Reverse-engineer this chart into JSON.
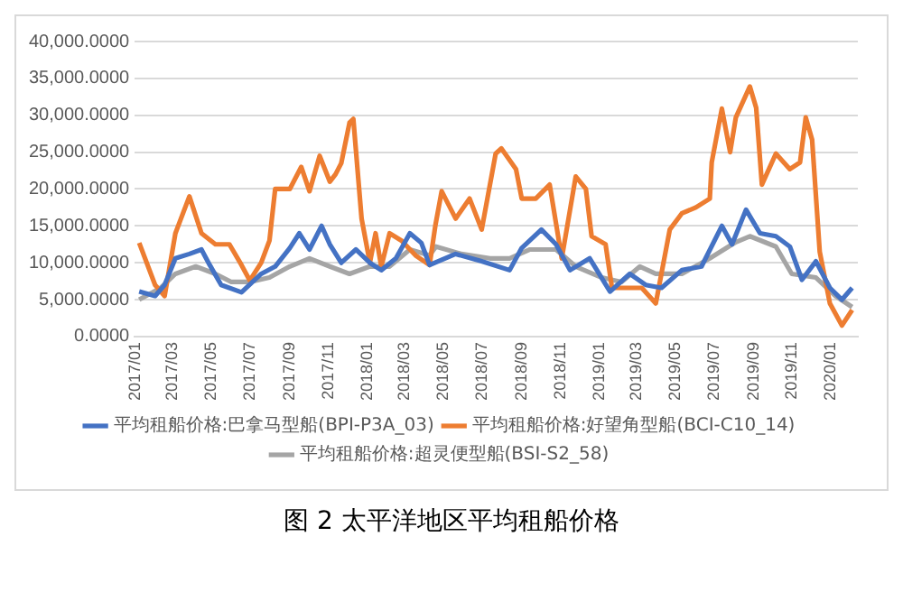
{
  "chart_data": {
    "type": "line",
    "title": "图 2 太平洋地区平均租船价格",
    "xlim": [
      "2016-12-31",
      "2020-02-12"
    ],
    "xticks": [
      {
        "value": "2017-01-01",
        "label": "2017/01"
      },
      {
        "value": "2017-03-01",
        "label": "2017/03"
      },
      {
        "value": "2017-05-01",
        "label": "2017/05"
      },
      {
        "value": "2017-07-01",
        "label": "2017/07"
      },
      {
        "value": "2017-09-01",
        "label": "2017/09"
      },
      {
        "value": "2017-11-01",
        "label": "2017/11"
      },
      {
        "value": "2018-01-01",
        "label": "2018/01"
      },
      {
        "value": "2018-03-01",
        "label": "2018/03"
      },
      {
        "value": "2018-05-01",
        "label": "2018/05"
      },
      {
        "value": "2018-07-01",
        "label": "2018/07"
      },
      {
        "value": "2018-09-01",
        "label": "2018/09"
      },
      {
        "value": "2018-11-01",
        "label": "2018/11"
      },
      {
        "value": "2019-01-01",
        "label": "2019/01"
      },
      {
        "value": "2019-03-01",
        "label": "2019/03"
      },
      {
        "value": "2019-05-01",
        "label": "2019/05"
      },
      {
        "value": "2019-07-01",
        "label": "2019/07"
      },
      {
        "value": "2019-09-01",
        "label": "2019/09"
      },
      {
        "value": "2019-11-01",
        "label": "2019/11"
      },
      {
        "value": "2020-01-01",
        "label": "2020/01"
      }
    ],
    "ylim": [
      0,
      40000
    ],
    "yticks": [
      {
        "value": 0,
        "label": "0.0000"
      },
      {
        "value": 5000,
        "label": "5,000.0000"
      },
      {
        "value": 10000,
        "label": "10,000.0000"
      },
      {
        "value": 15000,
        "label": "15,000.0000"
      },
      {
        "value": 20000,
        "label": "20,000.0000"
      },
      {
        "value": 25000,
        "label": "25,000.0000"
      },
      {
        "value": 30000,
        "label": "30,000.0000"
      },
      {
        "value": 35000,
        "label": "35,000.0000"
      },
      {
        "value": 40000,
        "label": "40,000.0000"
      }
    ],
    "grid": "y",
    "legend": "bottom",
    "marker": "none",
    "line_style": "solid",
    "series": [
      {
        "name": "平均租船价格:巴拿马型船(BPI-P3A_03)",
        "color": "#4472c4",
        "x": [
          "2017-01-07",
          "2017-02-01",
          "2017-02-16",
          "2017-03-05",
          "2017-03-27",
          "2017-04-15",
          "2017-04-28",
          "2017-05-16",
          "2017-06-17",
          "2017-07-18",
          "2017-08-09",
          "2017-09-01",
          "2017-09-16",
          "2017-10-02",
          "2017-10-21",
          "2017-11-03",
          "2017-11-21",
          "2017-12-14",
          "2018-01-05",
          "2018-01-23",
          "2018-02-15",
          "2018-03-09",
          "2018-03-27",
          "2018-04-09",
          "2018-05-20",
          "2018-06-30",
          "2018-08-13",
          "2018-09-01",
          "2018-10-02",
          "2018-10-25",
          "2018-11-16",
          "2018-12-17",
          "2019-01-18",
          "2019-02-18",
          "2019-03-15",
          "2019-04-09",
          "2019-05-11",
          "2019-06-11",
          "2019-07-13",
          "2019-07-29",
          "2019-08-20",
          "2019-09-11",
          "2019-10-06",
          "2019-10-28",
          "2019-11-16",
          "2019-12-08",
          "2019-12-30",
          "2020-01-18",
          "2020-02-03"
        ],
        "values": [
          6100,
          5500,
          7000,
          10600,
          11200,
          11800,
          9700,
          7000,
          6000,
          8500,
          9500,
          12000,
          14000,
          11800,
          15000,
          12500,
          10000,
          11800,
          10000,
          9000,
          10600,
          14000,
          12700,
          9700,
          11200,
          10200,
          9000,
          12000,
          14500,
          12500,
          9000,
          10600,
          6100,
          8500,
          7000,
          6600,
          9000,
          9500,
          15000,
          12500,
          17200,
          14000,
          13600,
          12200,
          7700,
          10200,
          6600,
          5000,
          6600
        ]
      },
      {
        "name": "平均租船价格:好望角型船(BCI-C10_14)",
        "color": "#ed7d31",
        "x": [
          "2017-01-07",
          "2017-02-01",
          "2017-02-16",
          "2017-03-05",
          "2017-03-27",
          "2017-04-15",
          "2017-05-07",
          "2017-05-29",
          "2017-06-17",
          "2017-06-30",
          "2017-07-18",
          "2017-07-31",
          "2017-08-09",
          "2017-09-01",
          "2017-09-19",
          "2017-10-02",
          "2017-10-18",
          "2017-11-03",
          "2017-11-12",
          "2017-11-21",
          "2017-12-04",
          "2017-12-10",
          "2017-12-23",
          "2018-01-05",
          "2018-01-14",
          "2018-01-23",
          "2018-02-05",
          "2018-02-24",
          "2018-03-18",
          "2018-04-09",
          "2018-04-18",
          "2018-04-28",
          "2018-05-20",
          "2018-06-11",
          "2018-06-30",
          "2018-07-22",
          "2018-07-31",
          "2018-08-23",
          "2018-09-01",
          "2018-09-23",
          "2018-10-15",
          "2018-11-03",
          "2018-11-25",
          "2018-12-11",
          "2018-12-20",
          "2019-01-11",
          "2019-01-21",
          "2019-02-18",
          "2019-03-09",
          "2019-03-31",
          "2019-04-22",
          "2019-05-11",
          "2019-06-02",
          "2019-06-24",
          "2019-06-27",
          "2019-07-13",
          "2019-07-26",
          "2019-08-04",
          "2019-08-26",
          "2019-09-05",
          "2019-09-14",
          "2019-10-06",
          "2019-10-28",
          "2019-11-13",
          "2019-11-22",
          "2019-12-02",
          "2019-12-14",
          "2019-12-30",
          "2020-01-18",
          "2020-02-03"
        ],
        "values": [
          12700,
          7000,
          5500,
          14000,
          19000,
          14000,
          12500,
          12500,
          9700,
          7600,
          10000,
          13000,
          20000,
          20000,
          23000,
          19700,
          24500,
          21000,
          22000,
          23500,
          29000,
          29500,
          16000,
          10000,
          14000,
          9500,
          14000,
          13000,
          11000,
          9700,
          15000,
          19700,
          16000,
          18700,
          14500,
          24800,
          25500,
          22700,
          18700,
          18700,
          20600,
          10600,
          21700,
          20000,
          13600,
          12500,
          6600,
          6600,
          6600,
          4500,
          14500,
          16700,
          17500,
          18700,
          23600,
          30900,
          25000,
          29700,
          33900,
          31000,
          20600,
          24800,
          22700,
          23600,
          29700,
          26700,
          11500,
          4500,
          1500,
          3600
        ]
      },
      {
        "name": "平均租船价格:超灵便型船(BSI-S2_58)",
        "color": "#a5a5a5",
        "x": [
          "2017-01-07",
          "2017-02-10",
          "2017-03-05",
          "2017-04-06",
          "2017-05-07",
          "2017-06-01",
          "2017-06-30",
          "2017-07-31",
          "2017-09-01",
          "2017-10-02",
          "2017-11-03",
          "2017-12-04",
          "2018-01-05",
          "2018-02-05",
          "2018-03-09",
          "2018-04-09",
          "2018-04-19",
          "2018-05-29",
          "2018-07-13",
          "2018-08-13",
          "2018-09-14",
          "2018-10-25",
          "2018-11-25",
          "2019-01-05",
          "2019-02-05",
          "2019-03-06",
          "2019-03-31",
          "2019-05-11",
          "2019-06-24",
          "2019-08-04",
          "2019-08-26",
          "2019-10-06",
          "2019-10-31",
          "2019-12-08",
          "2020-01-08",
          "2020-02-03"
        ],
        "values": [
          5000,
          6600,
          8500,
          9500,
          8500,
          7400,
          7400,
          8000,
          9500,
          10600,
          9500,
          8500,
          9500,
          9500,
          11800,
          11000,
          12200,
          11200,
          10600,
          10600,
          11800,
          11800,
          9500,
          8000,
          7400,
          9500,
          8500,
          8500,
          10600,
          12800,
          13600,
          12200,
          8500,
          8000,
          5500,
          4000
        ]
      }
    ]
  }
}
